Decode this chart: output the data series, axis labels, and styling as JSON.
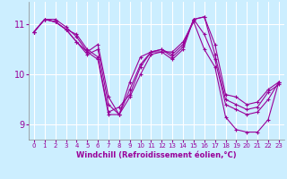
{
  "xlabel": "Windchill (Refroidissement éolien,°C)",
  "background_color": "#cceeff",
  "grid_color": "#ffffff",
  "line_color": "#990099",
  "xlim": [
    -0.5,
    23.5
  ],
  "ylim": [
    8.7,
    11.45
  ],
  "xticks": [
    0,
    1,
    2,
    3,
    4,
    5,
    6,
    7,
    8,
    9,
    10,
    11,
    12,
    13,
    14,
    15,
    16,
    17,
    18,
    19,
    20,
    21,
    22,
    23
  ],
  "yticks": [
    9,
    10,
    11
  ],
  "series": [
    [
      10.85,
      11.1,
      11.1,
      10.95,
      10.75,
      10.45,
      10.3,
      9.2,
      9.2,
      9.55,
      10.0,
      10.4,
      10.45,
      10.3,
      10.5,
      11.1,
      11.15,
      10.4,
      9.5,
      9.4,
      9.3,
      9.35,
      9.65,
      9.8
    ],
    [
      10.85,
      11.1,
      11.05,
      10.9,
      10.8,
      10.5,
      10.35,
      9.25,
      9.35,
      9.6,
      10.15,
      10.45,
      10.5,
      10.35,
      10.55,
      11.1,
      11.15,
      10.6,
      9.6,
      9.55,
      9.4,
      9.45,
      9.7,
      9.85
    ],
    [
      10.85,
      11.1,
      11.05,
      10.9,
      10.65,
      10.45,
      10.6,
      9.55,
      9.2,
      9.85,
      10.35,
      10.45,
      10.45,
      10.45,
      10.65,
      11.05,
      10.5,
      10.15,
      9.15,
      8.9,
      8.85,
      8.85,
      9.1,
      9.85
    ],
    [
      10.85,
      11.1,
      11.05,
      10.9,
      10.65,
      10.4,
      10.5,
      9.4,
      9.2,
      9.7,
      10.2,
      10.45,
      10.5,
      10.4,
      10.6,
      11.1,
      10.8,
      10.3,
      9.4,
      9.3,
      9.2,
      9.25,
      9.5,
      9.85
    ]
  ]
}
